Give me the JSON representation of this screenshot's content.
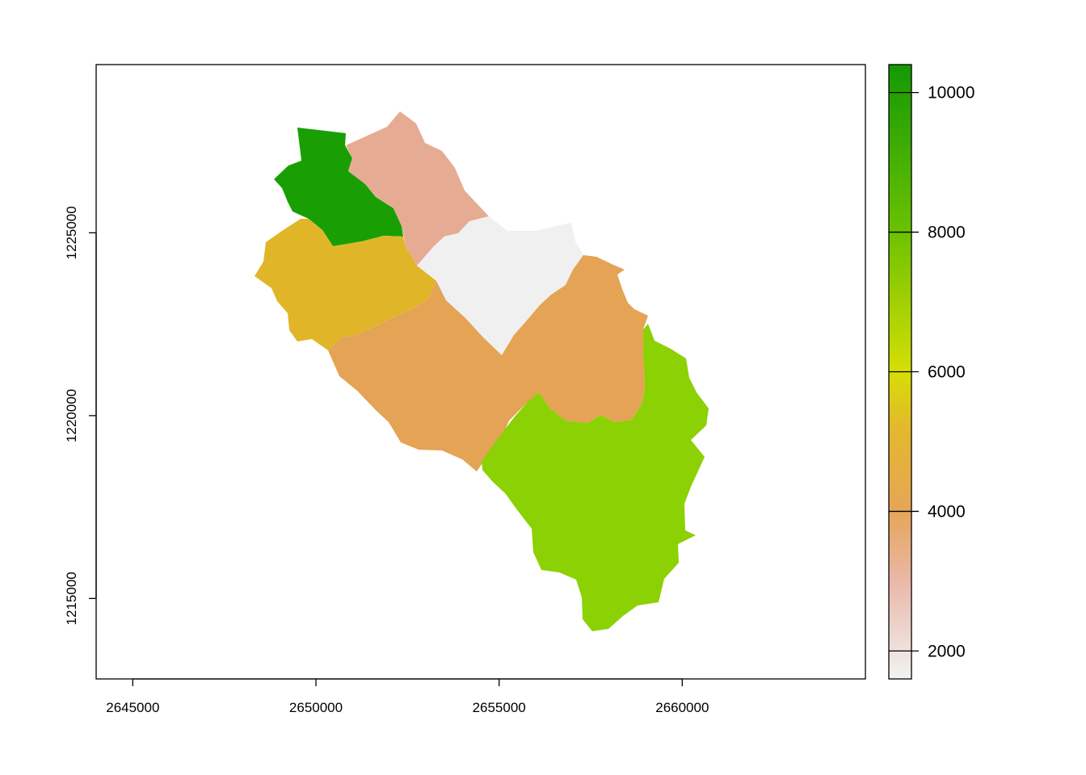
{
  "map": {
    "x_axis": {
      "ticks": [
        2645000,
        2650000,
        2655000,
        2660000
      ],
      "tick_labels": [
        "2645000",
        "2650000",
        "2655000",
        "2660000"
      ],
      "range": [
        2644000,
        2665000
      ]
    },
    "y_axis": {
      "ticks": [
        1215000,
        1220000,
        1225000
      ],
      "tick_labels": [
        "1215000",
        "1220000",
        "1225000"
      ],
      "range": [
        1212800,
        1229600
      ]
    },
    "regions": [
      {
        "name": "northwest-green",
        "value": 10300,
        "color": "#199F04"
      },
      {
        "name": "north-pink",
        "value": 3200,
        "color": "#E6AC93"
      },
      {
        "name": "center-grey",
        "value": 1700,
        "color": "#F0F0F0"
      },
      {
        "name": "west-yellow",
        "value": 5200,
        "color": "#E0B628"
      },
      {
        "name": "central-orange",
        "value": 4200,
        "color": "#E4A355"
      },
      {
        "name": "southeast-lime",
        "value": 7300,
        "color": "#8CD103"
      }
    ]
  },
  "colorbar": {
    "range": [
      1600,
      10400
    ],
    "ticks": [
      2000,
      4000,
      6000,
      8000,
      10000
    ],
    "tick_labels": [
      "2000",
      "4000",
      "6000",
      "8000",
      "10000"
    ],
    "stops": [
      {
        "value": 1600,
        "color": "#F2F2F2"
      },
      {
        "value": 3000,
        "color": "#E9B8A8"
      },
      {
        "value": 4000,
        "color": "#E6A558"
      },
      {
        "value": 5200,
        "color": "#E4B82C"
      },
      {
        "value": 6000,
        "color": "#D6DE06"
      },
      {
        "value": 8000,
        "color": "#6BC200"
      },
      {
        "value": 10400,
        "color": "#149903"
      }
    ]
  }
}
